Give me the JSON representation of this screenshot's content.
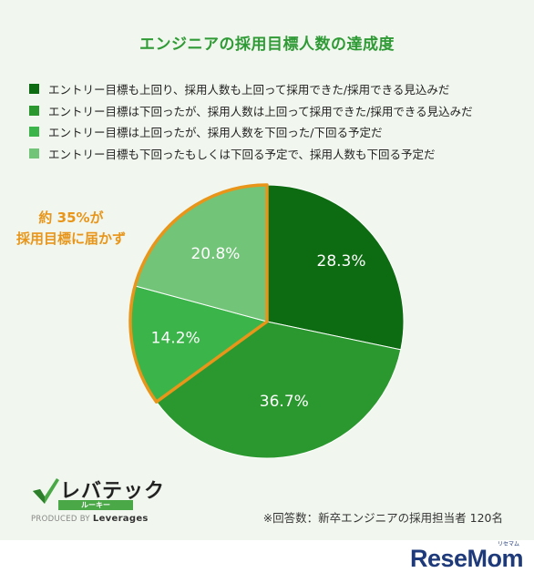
{
  "title": "エンジニアの採用目標人数の達成度",
  "legend": [
    {
      "label": "エントリー目標も上回り、採用人数も上回って採用できた/採用できる見込みだ",
      "color": "#0d6b12"
    },
    {
      "label": "エントリー目標は下回ったが、採用人数は上回って採用できた/採用できる見込みだ",
      "color": "#2b982f"
    },
    {
      "label": "エントリー目標は上回ったが、採用人数を下回った/下回る予定だ",
      "color": "#3bb54a"
    },
    {
      "label": "エントリー目標も下回ったもしくは下回る予定で、採用人数も下回る予定だ",
      "color": "#72c478"
    }
  ],
  "callout": {
    "line1": "約 35%が",
    "line2": "採用目標に届かず",
    "color": "#e8951a"
  },
  "chart_data": {
    "type": "pie",
    "title": "エンジニアの採用目標人数の達成度",
    "values": [
      28.3,
      36.7,
      14.2,
      20.8
    ],
    "labels": [
      "28.3%",
      "36.7%",
      "14.2%",
      "20.8%"
    ],
    "categories": [
      "エントリー目標も上回り、採用人数も上回って採用できた/採用できる見込みだ",
      "エントリー目標は下回ったが、採用人数は上回って採用できた/採用できる見込みだ",
      "エントリー目標は上回ったが、採用人数を下回った/下回る予定だ",
      "エントリー目標も下回ったもしくは下回る予定で、採用人数も下回る予定だ"
    ],
    "colors": [
      "#0d6b12",
      "#2b982f",
      "#3bb54a",
      "#72c478"
    ],
    "highlight": {
      "indices": [
        2,
        3
      ],
      "color": "#e8951a"
    },
    "legend_position": "top"
  },
  "logo": {
    "title": "レバテック",
    "sub": "ルーキー",
    "produced": "PRODUCED BY",
    "company": "Leverages"
  },
  "footnote": "※回答数：新卒エンジニアの採用担当者 120名",
  "brand": {
    "name": "ReseMom",
    "ruby": "リセマム"
  }
}
